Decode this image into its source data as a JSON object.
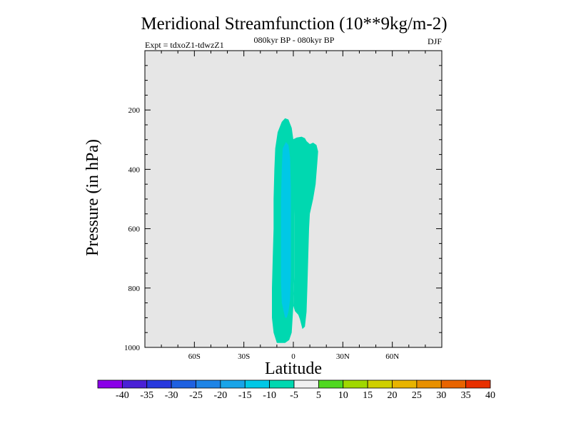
{
  "chart_data": {
    "type": "contour",
    "title": "Meridional Streamfunction (10**9kg/m-2)",
    "subtitle_left": "Expt = tdxoZ1-tdwzZ1",
    "subtitle_center": "080kyr BP - 080kyr BP",
    "subtitle_right": "DJF",
    "xlabel": "Latitude",
    "ylabel": "Pressure (in hPa)",
    "xlim": [
      -90,
      90
    ],
    "ylim": [
      1000,
      0
    ],
    "x_ticks": [
      {
        "value": -60,
        "label": "60S"
      },
      {
        "value": -30,
        "label": "30S"
      },
      {
        "value": 0,
        "label": "0"
      },
      {
        "value": 30,
        "label": "30N"
      },
      {
        "value": 60,
        "label": "60N"
      }
    ],
    "y_ticks": [
      {
        "value": 200,
        "label": "200"
      },
      {
        "value": 400,
        "label": "400"
      },
      {
        "value": 600,
        "label": "600"
      },
      {
        "value": 800,
        "label": "800"
      },
      {
        "value": 1000,
        "label": "1000"
      }
    ],
    "background_color": "#e6e6e6",
    "contour_regions": [
      {
        "name": "minus-5-to-minus-10-west",
        "level_range": [
          -10,
          -5
        ],
        "color": "#00d8b0",
        "polygon": [
          [
            -10,
            985
          ],
          [
            -12,
            950
          ],
          [
            -13,
            900
          ],
          [
            -13,
            800
          ],
          [
            -12.5,
            700
          ],
          [
            -12,
            600
          ],
          [
            -12,
            500
          ],
          [
            -11.5,
            400
          ],
          [
            -11,
            330
          ],
          [
            -9.5,
            275
          ],
          [
            -7,
            240
          ],
          [
            -5,
            228
          ],
          [
            -3,
            232
          ],
          [
            -1,
            260
          ],
          [
            0,
            300
          ],
          [
            1,
            360
          ],
          [
            1,
            460
          ],
          [
            0.5,
            560
          ],
          [
            0.5,
            660
          ],
          [
            0.5,
            760
          ],
          [
            0,
            860
          ],
          [
            -1,
            950
          ],
          [
            -2.5,
            975
          ],
          [
            -5,
            985
          ],
          [
            -7,
            985
          ]
        ]
      },
      {
        "name": "minus-5-to-minus-10-east",
        "level_range": [
          -10,
          -5
        ],
        "color": "#00d8b0",
        "polygon": [
          [
            -0.5,
            300
          ],
          [
            2,
            293
          ],
          [
            5,
            290
          ],
          [
            7,
            295
          ],
          [
            8,
            305
          ],
          [
            10,
            315
          ],
          [
            12,
            310
          ],
          [
            14,
            318
          ],
          [
            15,
            340
          ],
          [
            14.5,
            380
          ],
          [
            13.5,
            450
          ],
          [
            12,
            500
          ],
          [
            10,
            550
          ],
          [
            9.5,
            600
          ],
          [
            9,
            700
          ],
          [
            8.5,
            800
          ],
          [
            8,
            880
          ],
          [
            7,
            930
          ],
          [
            5.5,
            938
          ],
          [
            4,
            905
          ],
          [
            3,
            890
          ],
          [
            1,
            878
          ],
          [
            0,
            860
          ],
          [
            0.5,
            760
          ],
          [
            0.5,
            600
          ],
          [
            0.5,
            450
          ],
          [
            0,
            340
          ]
        ]
      },
      {
        "name": "minus-10-to-minus-15-core",
        "level_range": [
          -15,
          -10
        ],
        "color": "#00c8e6",
        "polygon": [
          [
            -5,
            900
          ],
          [
            -7,
            850
          ],
          [
            -7.5,
            780
          ],
          [
            -7.5,
            700
          ],
          [
            -7.5,
            600
          ],
          [
            -7.5,
            500
          ],
          [
            -7,
            400
          ],
          [
            -6.5,
            330
          ],
          [
            -4.5,
            308
          ],
          [
            -3,
            318
          ],
          [
            -2,
            360
          ],
          [
            -1.5,
            460
          ],
          [
            -1.5,
            560
          ],
          [
            -1.5,
            660
          ],
          [
            -1.5,
            760
          ],
          [
            -2,
            840
          ],
          [
            -3,
            880
          ],
          [
            -4,
            900
          ]
        ]
      }
    ],
    "colorbar": {
      "labels": [
        "-40",
        "-35",
        "-30",
        "-25",
        "-20",
        "-15",
        "-10",
        "-5",
        "5",
        "10",
        "15",
        "20",
        "25",
        "30",
        "35",
        "40"
      ],
      "colors": [
        "#8a00e8",
        "#4a20d6",
        "#2838de",
        "#1e60e0",
        "#1e84e6",
        "#18a4e8",
        "#00c8e6",
        "#00d8b0",
        "#f0f0f0",
        "#50d820",
        "#a0d800",
        "#d0d000",
        "#e8b400",
        "#e89000",
        "#e86400",
        "#e83000"
      ]
    }
  }
}
